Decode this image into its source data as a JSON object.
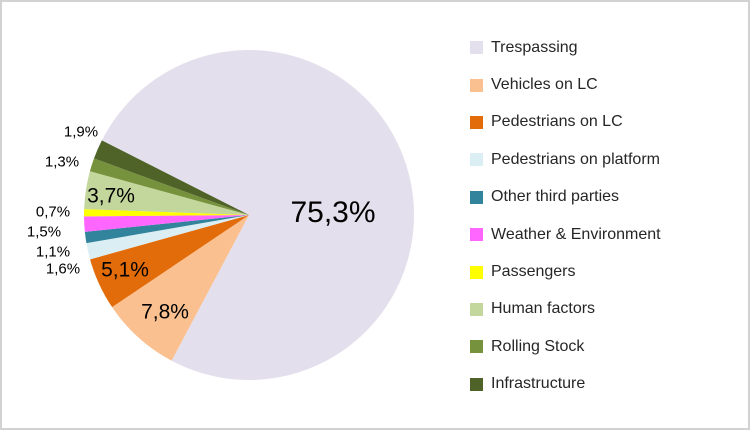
{
  "chart_data": {
    "type": "pie",
    "title": "",
    "categories": [
      "Trespassing",
      "Vehicles on LC",
      "Pedestrians on LC",
      "Pedestrians on platform",
      "Other third parties",
      "Weather & Environment",
      "Passengers",
      "Human factors",
      "Rolling Stock",
      "Infrastructure"
    ],
    "values": [
      75.3,
      7.8,
      5.1,
      1.6,
      1.1,
      1.5,
      0.7,
      3.7,
      1.3,
      1.9
    ],
    "display_labels": [
      "75,3%",
      "7,8%",
      "5,1%",
      "1,6%",
      "1,1%",
      "1,5%",
      "0,7%",
      "3,7%",
      "1,3%",
      "1,9%"
    ],
    "colors": [
      "#E4DFEC",
      "#FAC090",
      "#E36C0A",
      "#DAEEF3",
      "#31849B",
      "#FF66FF",
      "#FFFF00",
      "#C3D69B",
      "#76923C",
      "#4F6228"
    ],
    "start_angle_deg": 296.9,
    "direction": "clockwise",
    "legend_position": "right",
    "decimal_separator": ",",
    "label_color": "#000000",
    "legend_text_color": "#262626"
  }
}
